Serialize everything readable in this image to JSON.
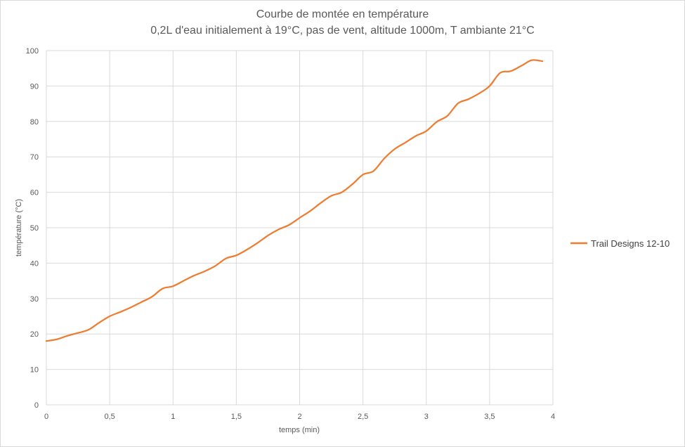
{
  "chart_data": {
    "type": "line",
    "title": "Courbe de montée en température",
    "subtitle": "0,2L d'eau initialement à 19°C, pas de vent, altitude 1000m, T ambiante 21°C",
    "xlabel": "temps (min)",
    "ylabel": "température (°C)",
    "xlim": [
      0,
      4
    ],
    "ylim": [
      0,
      100
    ],
    "x_ticks": [
      0,
      0.5,
      1,
      1.5,
      2,
      2.5,
      3,
      3.5,
      4
    ],
    "x_tick_labels": [
      "0",
      "0,5",
      "1",
      "1,5",
      "2",
      "2,5",
      "3",
      "3,5",
      "4"
    ],
    "y_ticks": [
      0,
      10,
      20,
      30,
      40,
      50,
      60,
      70,
      80,
      90,
      100
    ],
    "y_tick_labels": [
      "0",
      "10",
      "20",
      "30",
      "40",
      "50",
      "60",
      "70",
      "80",
      "90",
      "100"
    ],
    "grid": true,
    "legend_position": "right",
    "series": [
      {
        "name": "Trail Designs 12-10",
        "color": "#ED7D31",
        "x": [
          0,
          0.083,
          0.167,
          0.25,
          0.333,
          0.417,
          0.5,
          0.583,
          0.667,
          0.75,
          0.833,
          0.917,
          1,
          1.083,
          1.167,
          1.25,
          1.333,
          1.417,
          1.5,
          1.583,
          1.667,
          1.75,
          1.833,
          1.917,
          2,
          2.083,
          2.167,
          2.25,
          2.333,
          2.417,
          2.5,
          2.583,
          2.667,
          2.75,
          2.833,
          2.917,
          3,
          3.083,
          3.167,
          3.25,
          3.333,
          3.417,
          3.5,
          3.583,
          3.667,
          3.75,
          3.833,
          3.917
        ],
        "y": [
          18,
          18.5,
          19.5,
          20.3,
          21.2,
          23.2,
          25,
          26.2,
          27.5,
          29,
          30.5,
          32.8,
          33.5,
          35,
          36.5,
          37.7,
          39.2,
          41.3,
          42.2,
          43.8,
          45.7,
          47.8,
          49.5,
          50.8,
          52.8,
          54.7,
          57,
          59,
          60,
          62.3,
          65,
          66,
          69.5,
          72.2,
          74,
          75.9,
          77.3,
          79.9,
          81.6,
          85.1,
          86.3,
          87.9,
          90,
          93.7,
          94.2,
          95.7,
          97.3,
          97
        ]
      }
    ]
  }
}
